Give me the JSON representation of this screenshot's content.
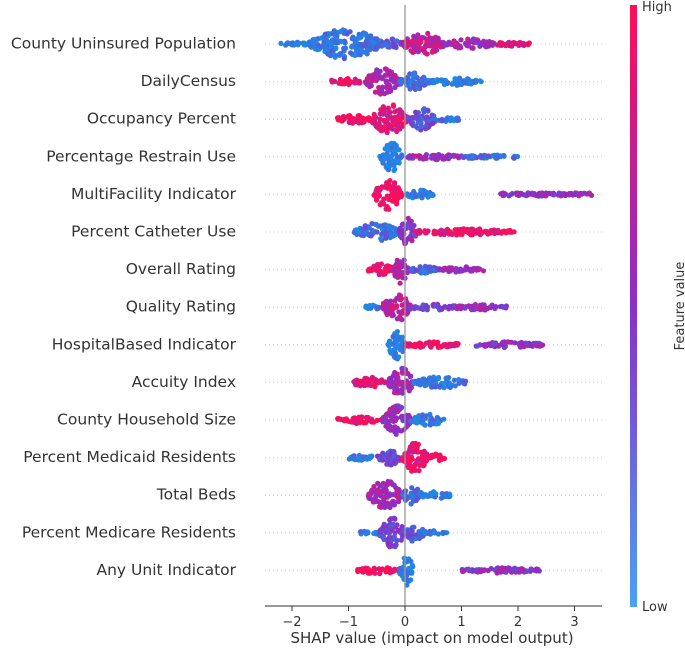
{
  "chart_data": {
    "type": "scatter",
    "subtype": "shap-beeswarm",
    "title": "",
    "xlabel": "SHAP value (impact on model output)",
    "ylabel": "",
    "xlim": [
      -2.5,
      3.6
    ],
    "xticks": [
      -2,
      -1,
      0,
      1,
      2,
      3
    ],
    "xtick_labels": [
      "−2",
      "−1",
      "0",
      "1",
      "2",
      "3"
    ],
    "grid": false,
    "colorbar": {
      "title": "Feature value",
      "high_label": "High",
      "low_label": "Low",
      "high_color": "#ff0d57",
      "mid_color": "#8a2fc9",
      "low_color": "#1e88e5",
      "placement": "right"
    },
    "features": [
      {
        "name": "County Uninsured Population",
        "min": -2.2,
        "max": 2.2,
        "segments": [
          {
            "from": -2.2,
            "to": -1.7,
            "spread": 0.15,
            "color": 0.02
          },
          {
            "from": -1.7,
            "to": -0.4,
            "spread": 1.0,
            "color": 0.1
          },
          {
            "from": -0.4,
            "to": -0.05,
            "spread": 0.35,
            "color": 0.3
          },
          {
            "from": -0.05,
            "to": 0.7,
            "spread": 0.75,
            "color": 0.75
          },
          {
            "from": 0.7,
            "to": 1.6,
            "spread": 0.35,
            "color": 0.6
          },
          {
            "from": 1.6,
            "to": 2.2,
            "spread": 0.15,
            "color": 0.85
          }
        ]
      },
      {
        "name": "DailyCensus",
        "min": -1.3,
        "max": 1.35,
        "segments": [
          {
            "from": -1.3,
            "to": -0.7,
            "spread": 0.2,
            "color": 0.9
          },
          {
            "from": -0.7,
            "to": -0.1,
            "spread": 0.9,
            "color": 0.65
          },
          {
            "from": -0.1,
            "to": 0.4,
            "spread": 0.6,
            "color": 0.15
          },
          {
            "from": 0.4,
            "to": 1.35,
            "spread": 0.25,
            "color": 0.05
          }
        ]
      },
      {
        "name": "Occupancy Percent",
        "min": -1.2,
        "max": 0.95,
        "segments": [
          {
            "from": -1.2,
            "to": -0.6,
            "spread": 0.3,
            "color": 0.97
          },
          {
            "from": -0.6,
            "to": 0.05,
            "spread": 1.0,
            "color": 0.85
          },
          {
            "from": 0.05,
            "to": 0.55,
            "spread": 0.75,
            "color": 0.3
          },
          {
            "from": 0.55,
            "to": 0.95,
            "spread": 0.15,
            "color": 0.1
          }
        ]
      },
      {
        "name": "Percentage Restrain Use",
        "min": -0.45,
        "max": 2.05,
        "segments": [
          {
            "from": -0.45,
            "to": -0.05,
            "spread": 1.0,
            "color": 0.02
          },
          {
            "from": 0.05,
            "to": 1.0,
            "spread": 0.2,
            "color": 0.55
          },
          {
            "from": 1.0,
            "to": 2.05,
            "spread": 0.12,
            "color": 0.15
          }
        ]
      },
      {
        "name": "MultiFacility Indicator",
        "min": -0.55,
        "max": 3.35,
        "segments": [
          {
            "from": -0.55,
            "to": -0.05,
            "spread": 1.0,
            "color": 0.97
          },
          {
            "from": 0.0,
            "to": 0.5,
            "spread": 0.3,
            "color": 0.05
          },
          {
            "from": 1.65,
            "to": 3.35,
            "spread": 0.12,
            "color": 0.55
          }
        ]
      },
      {
        "name": "Percent Catheter Use",
        "min": -0.9,
        "max": 1.95,
        "segments": [
          {
            "from": -0.9,
            "to": -0.1,
            "spread": 0.6,
            "color": 0.15
          },
          {
            "from": -0.1,
            "to": 0.2,
            "spread": 1.0,
            "color": 0.5
          },
          {
            "from": 0.2,
            "to": 1.95,
            "spread": 0.22,
            "color": 0.92
          }
        ]
      },
      {
        "name": "Overall Rating",
        "min": -0.65,
        "max": 1.4,
        "segments": [
          {
            "from": -0.65,
            "to": -0.2,
            "spread": 0.4,
            "color": 0.9
          },
          {
            "from": -0.2,
            "to": 0.05,
            "spread": 1.0,
            "color": 0.6
          },
          {
            "from": 0.05,
            "to": 0.6,
            "spread": 0.25,
            "color": 0.2
          },
          {
            "from": 0.6,
            "to": 1.4,
            "spread": 0.2,
            "color": 0.55
          }
        ]
      },
      {
        "name": "Quality Rating",
        "min": -0.7,
        "max": 1.8,
        "segments": [
          {
            "from": -0.7,
            "to": -0.4,
            "spread": 0.15,
            "color": 0.1
          },
          {
            "from": -0.4,
            "to": 0.1,
            "spread": 1.0,
            "color": 0.7
          },
          {
            "from": 0.1,
            "to": 0.9,
            "spread": 0.2,
            "color": 0.4
          },
          {
            "from": 0.9,
            "to": 1.8,
            "spread": 0.2,
            "color": 0.55
          }
        ]
      },
      {
        "name": "HospitalBased Indicator",
        "min": -0.3,
        "max": 2.45,
        "segments": [
          {
            "from": -0.3,
            "to": 0.0,
            "spread": 1.0,
            "color": 0.02
          },
          {
            "from": 0.0,
            "to": 0.95,
            "spread": 0.2,
            "color": 0.97
          },
          {
            "from": 1.25,
            "to": 2.45,
            "spread": 0.2,
            "color": 0.5
          }
        ]
      },
      {
        "name": "Accuity Index",
        "min": -0.95,
        "max": 1.1,
        "segments": [
          {
            "from": -0.95,
            "to": -0.3,
            "spread": 0.35,
            "color": 0.88
          },
          {
            "from": -0.3,
            "to": 0.15,
            "spread": 1.0,
            "color": 0.6
          },
          {
            "from": 0.15,
            "to": 1.1,
            "spread": 0.4,
            "color": 0.1
          }
        ]
      },
      {
        "name": "County Household Size",
        "min": -1.2,
        "max": 0.7,
        "segments": [
          {
            "from": -1.2,
            "to": -0.4,
            "spread": 0.25,
            "color": 0.95
          },
          {
            "from": -0.4,
            "to": 0.1,
            "spread": 1.0,
            "color": 0.55
          },
          {
            "from": 0.1,
            "to": 0.7,
            "spread": 0.4,
            "color": 0.08
          }
        ]
      },
      {
        "name": "Percent Medicaid Residents",
        "min": -1.0,
        "max": 0.7,
        "segments": [
          {
            "from": -1.0,
            "to": -0.5,
            "spread": 0.2,
            "color": 0.05
          },
          {
            "from": -0.5,
            "to": -0.05,
            "spread": 0.5,
            "color": 0.35
          },
          {
            "from": -0.05,
            "to": 0.4,
            "spread": 1.0,
            "color": 0.9
          },
          {
            "from": 0.4,
            "to": 0.7,
            "spread": 0.25,
            "color": 0.95
          }
        ]
      },
      {
        "name": "Total Beds",
        "min": -0.65,
        "max": 0.8,
        "segments": [
          {
            "from": -0.65,
            "to": -0.05,
            "spread": 1.0,
            "color": 0.6
          },
          {
            "from": -0.05,
            "to": 0.3,
            "spread": 0.6,
            "color": 0.15
          },
          {
            "from": 0.3,
            "to": 0.8,
            "spread": 0.25,
            "color": 0.03
          }
        ]
      },
      {
        "name": "Percent Medicare Residents",
        "min": -0.8,
        "max": 0.75,
        "segments": [
          {
            "from": -0.8,
            "to": -0.45,
            "spread": 0.1,
            "color": 0.05
          },
          {
            "from": -0.45,
            "to": 0.0,
            "spread": 1.0,
            "color": 0.4
          },
          {
            "from": 0.0,
            "to": 0.35,
            "spread": 0.6,
            "color": 0.25
          },
          {
            "from": 0.35,
            "to": 0.75,
            "spread": 0.15,
            "color": 0.05
          }
        ]
      },
      {
        "name": "Any Unit Indicator",
        "min": -0.85,
        "max": 2.4,
        "segments": [
          {
            "from": -0.85,
            "to": -0.1,
            "spread": 0.25,
            "color": 0.97
          },
          {
            "from": -0.1,
            "to": 0.15,
            "spread": 1.0,
            "color": 0.03
          },
          {
            "from": 1.0,
            "to": 2.4,
            "spread": 0.18,
            "color": 0.5
          }
        ]
      }
    ]
  }
}
